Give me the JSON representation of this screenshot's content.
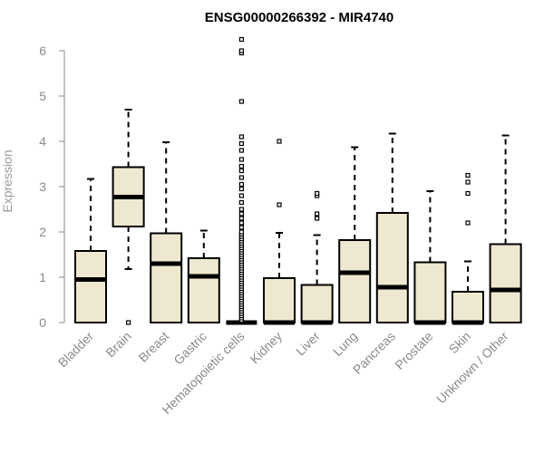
{
  "chart_data": {
    "type": "box",
    "title": "ENSG00000266392 - MIR4740",
    "xlabel": "",
    "ylabel": "Expression",
    "ylim": [
      0,
      6.3
    ],
    "yticks": [
      0,
      1,
      2,
      3,
      4,
      5,
      6
    ],
    "grid": false,
    "legend": "none",
    "box_fill": "#efe8d0",
    "box_stroke": "#000000",
    "median_color": "#000000",
    "categories": [
      "Bladder",
      "Brain",
      "Breast",
      "Gastric",
      "Hematopoietic cells",
      "Kidney",
      "Liver",
      "Lung",
      "Pancreas",
      "Prostate",
      "Skin",
      "Unknown / Other"
    ],
    "boxes": [
      {
        "category": "Bladder",
        "whisker_low": 0,
        "q1": 0,
        "median": 0.95,
        "q3": 1.58,
        "whisker_high": 3.17,
        "outliers": []
      },
      {
        "category": "Brain",
        "whisker_low": 1.18,
        "q1": 2.12,
        "median": 2.77,
        "q3": 3.43,
        "whisker_high": 4.7,
        "outliers": [
          0
        ]
      },
      {
        "category": "Breast",
        "whisker_low": 0,
        "q1": 0,
        "median": 1.3,
        "q3": 1.97,
        "whisker_high": 3.98,
        "outliers": []
      },
      {
        "category": "Gastric",
        "whisker_low": 0,
        "q1": 0,
        "median": 1.02,
        "q3": 1.42,
        "whisker_high": 2.03,
        "outliers": []
      },
      {
        "category": "Hematopoietic cells",
        "whisker_low": 0,
        "q1": 0,
        "median": 0,
        "q3": 0,
        "whisker_high": 0,
        "outliers": [
          0.05,
          0.1,
          0.15,
          0.2,
          0.25,
          0.3,
          0.35,
          0.4,
          0.45,
          0.5,
          0.55,
          0.6,
          0.65,
          0.7,
          0.75,
          0.8,
          0.85,
          0.9,
          0.95,
          1.0,
          1.05,
          1.1,
          1.15,
          1.2,
          1.25,
          1.3,
          1.35,
          1.4,
          1.45,
          1.5,
          1.55,
          1.6,
          1.65,
          1.7,
          1.75,
          1.8,
          1.85,
          1.9,
          1.95,
          2.0,
          2.1,
          2.2,
          2.3,
          2.4,
          2.5,
          2.65,
          2.8,
          2.95,
          3.05,
          3.2,
          3.35,
          3.45,
          3.6,
          3.8,
          3.95,
          4.1,
          4.88,
          5.95,
          6.0,
          6.25
        ]
      },
      {
        "category": "Kidney",
        "whisker_low": 0,
        "q1": 0,
        "median": 0,
        "q3": 0.98,
        "whisker_high": 1.98,
        "outliers": [
          2.6,
          4.0
        ]
      },
      {
        "category": "Liver",
        "whisker_low": 0,
        "q1": 0,
        "median": 0,
        "q3": 0.83,
        "whisker_high": 1.93,
        "outliers": [
          2.3,
          2.4,
          2.8,
          2.85
        ]
      },
      {
        "category": "Lung",
        "whisker_low": 0,
        "q1": 0,
        "median": 1.1,
        "q3": 1.82,
        "whisker_high": 3.87,
        "outliers": []
      },
      {
        "category": "Pancreas",
        "whisker_low": 0,
        "q1": 0,
        "median": 0.78,
        "q3": 2.42,
        "whisker_high": 4.17,
        "outliers": []
      },
      {
        "category": "Prostate",
        "whisker_low": 0,
        "q1": 0,
        "median": 0,
        "q3": 1.33,
        "whisker_high": 2.9,
        "outliers": []
      },
      {
        "category": "Skin",
        "whisker_low": 0,
        "q1": 0,
        "median": 0,
        "q3": 0.68,
        "whisker_high": 1.35,
        "outliers": [
          2.2,
          2.85,
          3.1,
          3.25
        ]
      },
      {
        "category": "Unknown / Other",
        "whisker_low": 0,
        "q1": 0,
        "median": 0.72,
        "q3": 1.73,
        "whisker_high": 4.13,
        "outliers": []
      }
    ]
  }
}
